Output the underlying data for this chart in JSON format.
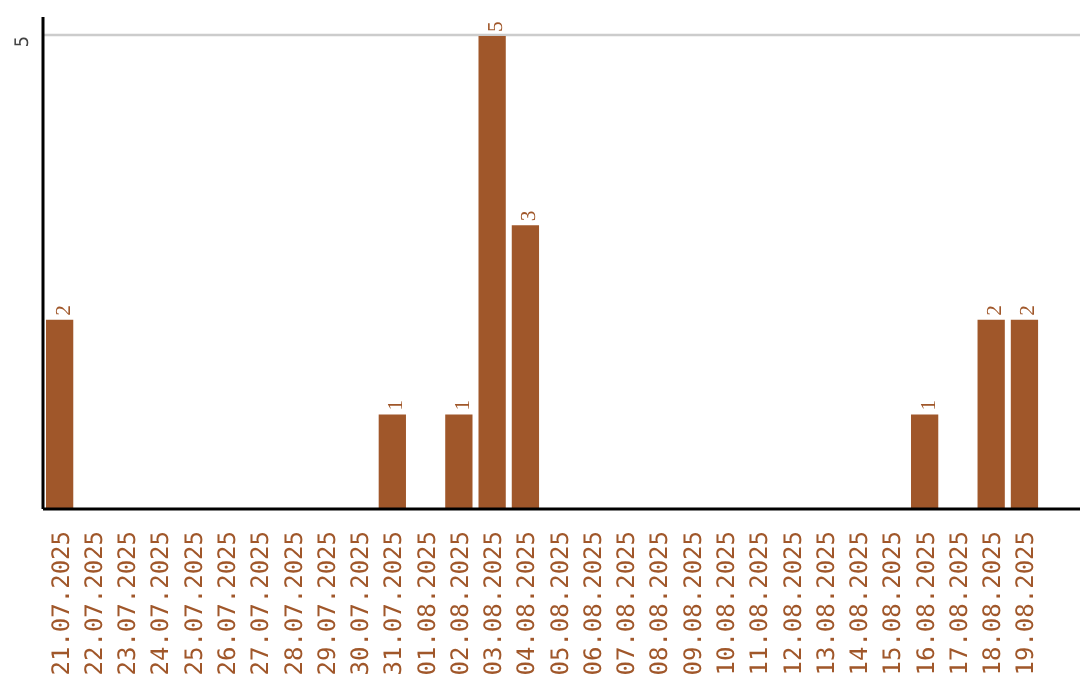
{
  "chart_data": {
    "type": "bar",
    "categories": [
      "21.07.2025",
      "22.07.2025",
      "23.07.2025",
      "24.07.2025",
      "25.07.2025",
      "26.07.2025",
      "27.07.2025",
      "28.07.2025",
      "29.07.2025",
      "30.07.2025",
      "31.07.2025",
      "01.08.2025",
      "02.08.2025",
      "03.08.2025",
      "04.08.2025",
      "05.08.2025",
      "06.08.2025",
      "07.08.2025",
      "08.08.2025",
      "09.08.2025",
      "10.08.2025",
      "11.08.2025",
      "12.08.2025",
      "13.08.2025",
      "14.08.2025",
      "15.08.2025",
      "16.08.2025",
      "17.08.2025",
      "18.08.2025",
      "19.08.2025"
    ],
    "values": [
      2,
      0,
      0,
      0,
      0,
      0,
      0,
      0,
      0,
      0,
      1,
      0,
      1,
      5,
      3,
      0,
      0,
      0,
      0,
      0,
      0,
      0,
      0,
      0,
      0,
      0,
      1,
      0,
      2,
      2
    ],
    "value_labels": [
      "2",
      null,
      null,
      null,
      null,
      null,
      null,
      null,
      null,
      null,
      "1",
      null,
      "1",
      "5",
      "3",
      null,
      null,
      null,
      null,
      null,
      null,
      null,
      null,
      null,
      null,
      null,
      "1",
      null,
      "2",
      "2"
    ],
    "color": "#a0572a",
    "ylim": [
      0,
      5.2
    ],
    "yticks": [
      5
    ],
    "grid": "y"
  }
}
